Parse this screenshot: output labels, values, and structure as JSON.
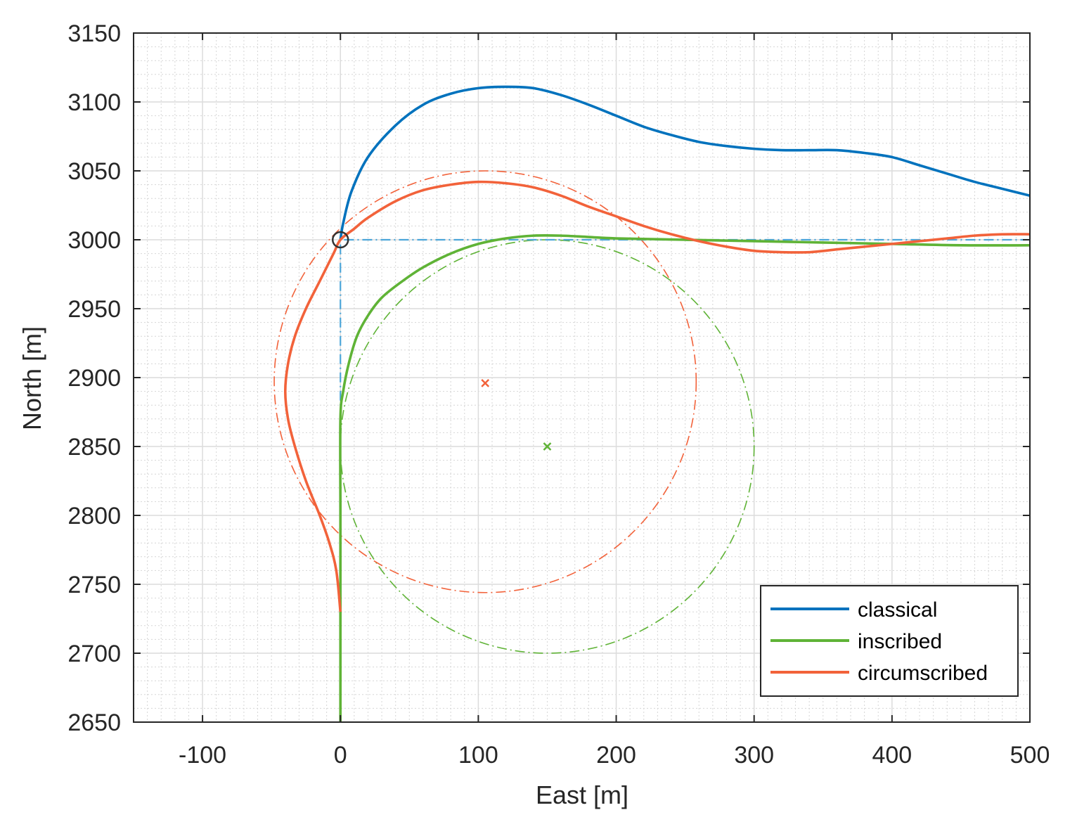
{
  "chart_data": {
    "type": "line",
    "xlabel": "East [m]",
    "ylabel": "North [m]",
    "xlim": [
      -150,
      500
    ],
    "ylim": [
      2650,
      3150
    ],
    "xticks": [
      -100,
      0,
      100,
      200,
      300,
      400,
      500
    ],
    "yticks": [
      2650,
      2700,
      2750,
      2800,
      2850,
      2900,
      2950,
      3000,
      3050,
      3100,
      3150
    ],
    "grid": "major and minor",
    "legend_position": "bottom-right",
    "colors": {
      "classical": "#0072BD",
      "inscribed": "#5FB336",
      "circumscribed": "#F2623A"
    },
    "series": [
      {
        "name": "classical",
        "color": "#0072BD",
        "points": [
          [
            0,
            3000
          ],
          [
            2,
            3012
          ],
          [
            8,
            3035
          ],
          [
            20,
            3060
          ],
          [
            40,
            3083
          ],
          [
            60,
            3098
          ],
          [
            80,
            3106
          ],
          [
            100,
            3110
          ],
          [
            120,
            3111
          ],
          [
            140,
            3110
          ],
          [
            160,
            3105
          ],
          [
            180,
            3098
          ],
          [
            200,
            3090
          ],
          [
            220,
            3082
          ],
          [
            240,
            3076
          ],
          [
            260,
            3071
          ],
          [
            280,
            3068
          ],
          [
            300,
            3066
          ],
          [
            320,
            3065
          ],
          [
            340,
            3065
          ],
          [
            360,
            3065
          ],
          [
            380,
            3063
          ],
          [
            400,
            3060
          ],
          [
            420,
            3054
          ],
          [
            440,
            3048
          ],
          [
            460,
            3042
          ],
          [
            480,
            3037
          ],
          [
            500,
            3032
          ]
        ]
      },
      {
        "name": "inscribed",
        "color": "#5FB336",
        "points": [
          [
            0,
            2650
          ],
          [
            0,
            2700
          ],
          [
            0,
            2800
          ],
          [
            0,
            2870
          ],
          [
            2,
            2890
          ],
          [
            6,
            2910
          ],
          [
            12,
            2930
          ],
          [
            20,
            2945
          ],
          [
            30,
            2958
          ],
          [
            45,
            2970
          ],
          [
            60,
            2980
          ],
          [
            80,
            2990
          ],
          [
            100,
            2997
          ],
          [
            120,
            3001
          ],
          [
            140,
            3003
          ],
          [
            160,
            3003
          ],
          [
            180,
            3002
          ],
          [
            200,
            3001
          ],
          [
            250,
            3000
          ],
          [
            300,
            2999
          ],
          [
            350,
            2998
          ],
          [
            400,
            2997
          ],
          [
            450,
            2996
          ],
          [
            500,
            2996
          ]
        ]
      },
      {
        "name": "circumscribed",
        "color": "#F2623A",
        "points": [
          [
            0,
            2730
          ],
          [
            -3,
            2760
          ],
          [
            -8,
            2780
          ],
          [
            -15,
            2800
          ],
          [
            -25,
            2825
          ],
          [
            -33,
            2850
          ],
          [
            -38,
            2870
          ],
          [
            -40,
            2890
          ],
          [
            -38,
            2910
          ],
          [
            -33,
            2930
          ],
          [
            -25,
            2950
          ],
          [
            -15,
            2970
          ],
          [
            -5,
            2990
          ],
          [
            0,
            3000
          ],
          [
            10,
            3008
          ],
          [
            20,
            3016
          ],
          [
            40,
            3028
          ],
          [
            60,
            3036
          ],
          [
            80,
            3040
          ],
          [
            100,
            3042
          ],
          [
            120,
            3041
          ],
          [
            140,
            3038
          ],
          [
            160,
            3032
          ],
          [
            180,
            3024
          ],
          [
            200,
            3017
          ],
          [
            220,
            3010
          ],
          [
            240,
            3004
          ],
          [
            260,
            2999
          ],
          [
            280,
            2995
          ],
          [
            300,
            2992
          ],
          [
            320,
            2991
          ],
          [
            340,
            2991
          ],
          [
            360,
            2993
          ],
          [
            380,
            2995
          ],
          [
            400,
            2997
          ],
          [
            420,
            2999
          ],
          [
            440,
            3001
          ],
          [
            460,
            3003
          ],
          [
            480,
            3004
          ],
          [
            500,
            3004
          ]
        ]
      }
    ],
    "reference_path": {
      "color": "#4DA6D9",
      "points": [
        [
          0,
          2870
        ],
        [
          0,
          3000
        ],
        [
          500,
          3000
        ]
      ]
    },
    "circles": [
      {
        "name": "inscribed-circle",
        "cx": 150,
        "cy": 2850,
        "r": 150,
        "color": "#5FB336"
      },
      {
        "name": "circumscribed-circle",
        "cx": 105,
        "cy": 2897,
        "r": 153,
        "color": "#F2623A"
      }
    ],
    "centers": [
      {
        "name": "circumscribed-center",
        "x": 105,
        "y": 2896,
        "color": "#F2623A"
      },
      {
        "name": "inscribed-center",
        "x": 150,
        "y": 2850,
        "color": "#5FB336"
      }
    ],
    "waypoint": {
      "x": 0,
      "y": 3000
    }
  }
}
